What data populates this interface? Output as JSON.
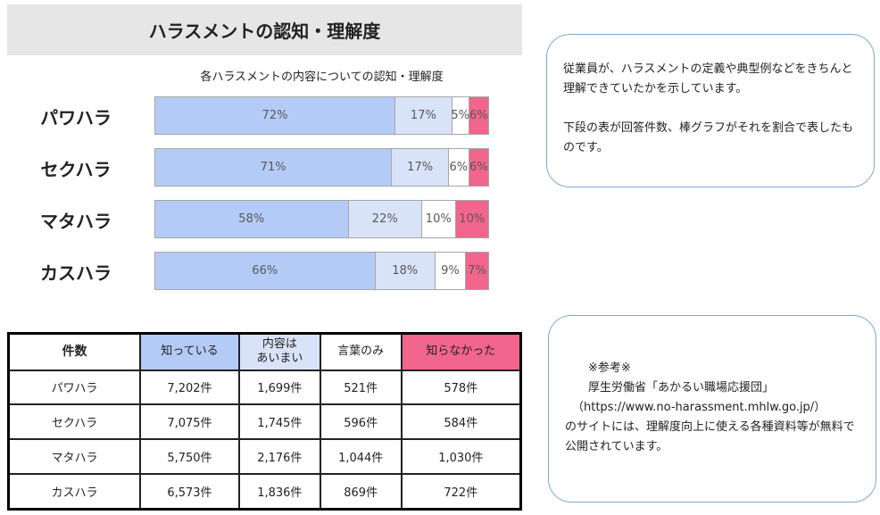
{
  "page_title": "ハラスメントの認知・理解度",
  "chart_data": {
    "type": "bar",
    "stacked": true,
    "orientation": "horizontal",
    "normalized": true,
    "title": "各ハラスメントの内容についての認知・理解度",
    "categories": [
      "パワハラ",
      "セクハラ",
      "マタハラ",
      "カスハラ"
    ],
    "series": [
      {
        "name": "知っている",
        "color": "#b4cbf7",
        "values": [
          72,
          71,
          58,
          66
        ]
      },
      {
        "name": "内容はあいまい",
        "color": "#d9e3f7",
        "values": [
          17,
          17,
          22,
          18
        ]
      },
      {
        "name": "言葉のみ",
        "color": "#ffffff",
        "values": [
          5,
          6,
          10,
          9
        ]
      },
      {
        "name": "知らなかった",
        "color": "#f2658c",
        "values": [
          6,
          6,
          10,
          7
        ]
      }
    ],
    "labels": [
      [
        "72%",
        "17%",
        "5%",
        "6%"
      ],
      [
        "71%",
        "17%",
        "6%",
        "6%"
      ],
      [
        "58%",
        "22%",
        "10%",
        "10%"
      ],
      [
        "66%",
        "18%",
        "9%",
        "7%"
      ]
    ]
  },
  "table": {
    "headers": [
      "件数",
      "知っている",
      "内容は\nあいまい",
      "言葉のみ",
      "知らなかった"
    ],
    "header_colors": [
      "#ffffff",
      "#b4cbf7",
      "#d9e3f7",
      "#ffffff",
      "#f2658c"
    ],
    "rows": [
      [
        "パワハラ",
        "7,202件",
        "1,699件",
        "521件",
        "578件"
      ],
      [
        "セクハラ",
        "7,075件",
        "1,745件",
        "596件",
        "584件"
      ],
      [
        "マタハラ",
        "5,750件",
        "2,176件",
        "1,044件",
        "1,030件"
      ],
      [
        "カスハラ",
        "6,573件",
        "1,836件",
        "869件",
        "722件"
      ]
    ]
  },
  "note1": {
    "line1": "従業員が、ハラスメントの定義や典型例などをきちんと理解できていたかを示しています。",
    "line2": "下段の表が回答件数、棒グラフがそれを割合で表したものです。"
  },
  "note2": {
    "title": "※参考※",
    "line1": "厚生労働省「あかるい職場応援団」",
    "line2": "（https://www.no-harassment.mhlw.go.jp/）",
    "line3": "のサイトには、理解度向上に使える各種資料等が無料で公開されています。"
  }
}
